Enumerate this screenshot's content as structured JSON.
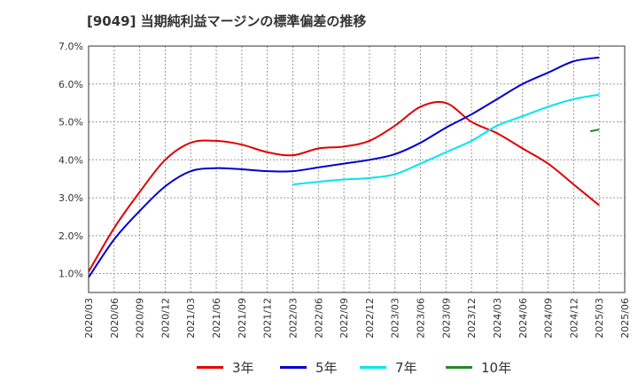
{
  "title": "[9049]  当期純利益マージンの標準偏差の推移",
  "chart_data": {
    "type": "line",
    "title": "[9049]  当期純利益マージンの標準偏差の推移",
    "xlabel": "",
    "ylabel": "",
    "x_ticks": [
      "2020/03",
      "2020/06",
      "2020/09",
      "2020/12",
      "2021/03",
      "2021/06",
      "2021/09",
      "2021/12",
      "2022/03",
      "2022/06",
      "2022/09",
      "2022/12",
      "2023/03",
      "2023/06",
      "2023/09",
      "2023/12",
      "2024/03",
      "2024/06",
      "2024/09",
      "2024/12",
      "2025/03",
      "2025/06"
    ],
    "y_ticks": [
      "1.0%",
      "2.0%",
      "3.0%",
      "4.0%",
      "5.0%",
      "6.0%",
      "7.0%"
    ],
    "ylim": [
      0.5,
      7.0
    ],
    "grid": true,
    "legend_position": "bottom",
    "series": [
      {
        "name": "3年",
        "color": "#e00000",
        "values": [
          1.05,
          2.2,
          3.15,
          4.0,
          4.45,
          4.5,
          4.4,
          4.2,
          4.12,
          4.3,
          4.35,
          4.5,
          4.9,
          5.4,
          5.5,
          5.0,
          4.7,
          4.3,
          3.9,
          3.35,
          2.8
        ]
      },
      {
        "name": "5年",
        "color": "#0000cc",
        "values": [
          0.9,
          1.9,
          2.65,
          3.3,
          3.7,
          3.78,
          3.75,
          3.7,
          3.7,
          3.8,
          3.9,
          4.0,
          4.15,
          4.45,
          4.85,
          5.2,
          5.6,
          6.0,
          6.3,
          6.6,
          6.7
        ]
      },
      {
        "name": "7年",
        "color": "#00e5ee",
        "values": [
          null,
          null,
          null,
          null,
          null,
          null,
          null,
          null,
          3.35,
          3.42,
          3.48,
          3.52,
          3.62,
          3.9,
          4.2,
          4.5,
          4.9,
          5.15,
          5.4,
          5.6,
          5.72
        ]
      },
      {
        "name": "10年",
        "color": "#228b22",
        "values": [
          null,
          null,
          null,
          null,
          null,
          null,
          null,
          null,
          null,
          null,
          null,
          null,
          null,
          null,
          null,
          null,
          null,
          null,
          null,
          null,
          4.8
        ]
      }
    ]
  }
}
